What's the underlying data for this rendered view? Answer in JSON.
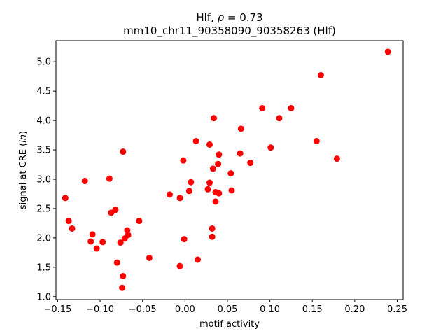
{
  "chart_data": {
    "type": "scatter",
    "title_line1_prefix": "Hlf, ",
    "title_line1_rho": "ρ",
    "title_line1_suffix": " = 0.73",
    "title_line2": "mm10_chr11_90358090_90358263 (Hlf)",
    "xlabel": "motif activity",
    "ylabel_prefix": "signal at CRE (",
    "ylabel_italic": "ln",
    "ylabel_suffix": ")",
    "xlim": [
      -0.152,
      0.257
    ],
    "ylim": [
      0.95,
      5.36
    ],
    "xticks": [
      -0.15,
      -0.1,
      -0.05,
      0.0,
      0.05,
      0.1,
      0.15,
      0.2,
      0.25
    ],
    "xtick_labels": [
      "−0.15",
      "−0.10",
      "−0.05",
      "0.00",
      "0.05",
      "0.10",
      "0.15",
      "0.20",
      "0.25"
    ],
    "yticks": [
      1.0,
      1.5,
      2.0,
      2.5,
      3.0,
      3.5,
      4.0,
      4.5,
      5.0
    ],
    "ytick_labels": [
      "1.0",
      "1.5",
      "2.0",
      "2.5",
      "3.0",
      "3.5",
      "4.0",
      "4.5",
      "5.0"
    ],
    "grid": false,
    "marker_color": "#ff0000",
    "points": [
      {
        "x": 0.239,
        "y": 5.17
      },
      {
        "x": 0.16,
        "y": 4.77
      },
      {
        "x": 0.091,
        "y": 4.21
      },
      {
        "x": 0.125,
        "y": 4.21
      },
      {
        "x": 0.111,
        "y": 4.04
      },
      {
        "x": 0.034,
        "y": 4.04
      },
      {
        "x": 0.066,
        "y": 3.86
      },
      {
        "x": 0.013,
        "y": 3.65
      },
      {
        "x": 0.155,
        "y": 3.65
      },
      {
        "x": 0.029,
        "y": 3.59
      },
      {
        "x": 0.101,
        "y": 3.54
      },
      {
        "x": -0.073,
        "y": 3.47
      },
      {
        "x": 0.065,
        "y": 3.44
      },
      {
        "x": 0.04,
        "y": 3.42
      },
      {
        "x": 0.179,
        "y": 3.35
      },
      {
        "x": -0.002,
        "y": 3.32
      },
      {
        "x": 0.077,
        "y": 3.28
      },
      {
        "x": 0.039,
        "y": 3.26
      },
      {
        "x": 0.033,
        "y": 3.18
      },
      {
        "x": 0.054,
        "y": 3.1
      },
      {
        "x": -0.089,
        "y": 3.01
      },
      {
        "x": -0.118,
        "y": 2.97
      },
      {
        "x": 0.007,
        "y": 2.95
      },
      {
        "x": 0.029,
        "y": 2.94
      },
      {
        "x": 0.027,
        "y": 2.83
      },
      {
        "x": 0.055,
        "y": 2.81
      },
      {
        "x": 0.005,
        "y": 2.8
      },
      {
        "x": 0.036,
        "y": 2.78
      },
      {
        "x": 0.04,
        "y": 2.76
      },
      {
        "x": -0.018,
        "y": 2.74
      },
      {
        "x": -0.006,
        "y": 2.68
      },
      {
        "x": -0.141,
        "y": 2.68
      },
      {
        "x": 0.036,
        "y": 2.62
      },
      {
        "x": -0.082,
        "y": 2.48
      },
      {
        "x": -0.087,
        "y": 2.43
      },
      {
        "x": -0.137,
        "y": 2.29
      },
      {
        "x": -0.054,
        "y": 2.29
      },
      {
        "x": -0.133,
        "y": 2.16
      },
      {
        "x": 0.032,
        "y": 2.16
      },
      {
        "x": -0.068,
        "y": 2.13
      },
      {
        "x": -0.067,
        "y": 2.05
      },
      {
        "x": -0.109,
        "y": 2.06
      },
      {
        "x": 0.032,
        "y": 2.02
      },
      {
        "x": -0.071,
        "y": 1.99
      },
      {
        "x": -0.001,
        "y": 1.98
      },
      {
        "x": -0.111,
        "y": 1.94
      },
      {
        "x": -0.097,
        "y": 1.93
      },
      {
        "x": -0.076,
        "y": 1.92
      },
      {
        "x": -0.104,
        "y": 1.82
      },
      {
        "x": -0.042,
        "y": 1.66
      },
      {
        "x": 0.015,
        "y": 1.63
      },
      {
        "x": -0.08,
        "y": 1.58
      },
      {
        "x": -0.006,
        "y": 1.52
      },
      {
        "x": -0.073,
        "y": 1.35
      },
      {
        "x": -0.074,
        "y": 1.15
      }
    ]
  }
}
